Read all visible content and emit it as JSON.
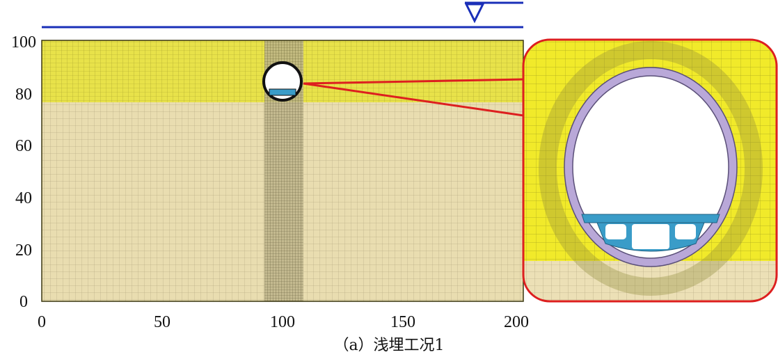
{
  "figure": {
    "caption": "（a）浅埋工况1",
    "colors": {
      "water_line": "#1a2fb8",
      "upper_layer": "#e8e24a",
      "lower_layer": "#e9ddb0",
      "mesh_line": "#5a5620",
      "lining": "#b9a8d8",
      "internal_structure": "#3a9cc8",
      "callout": "#dd1f1f"
    },
    "icons": [
      "water-level-triangle-icon"
    ]
  },
  "chart_data": {
    "type": "diagram",
    "x_ticks": [
      "0",
      "50",
      "100",
      "150",
      "200"
    ],
    "y_ticks": [
      "0",
      "20",
      "40",
      "60",
      "80",
      "100"
    ],
    "xlim": [
      0,
      200
    ],
    "ylim": [
      0,
      100
    ],
    "layer_boundary_y": 77,
    "tunnel_center": [
      100,
      86
    ],
    "water_level_marker_x": 179
  }
}
